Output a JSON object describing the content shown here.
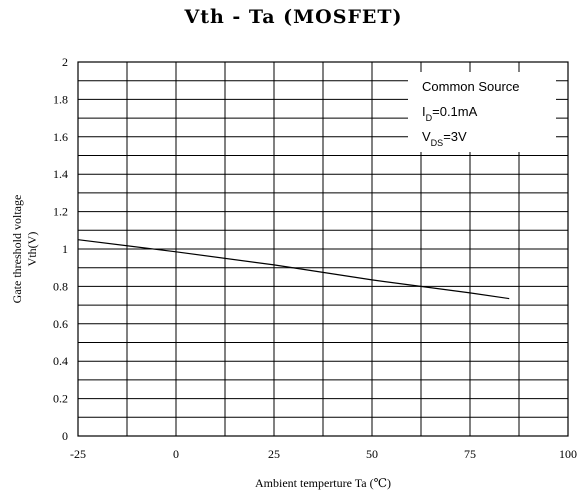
{
  "chart_data": {
    "type": "line",
    "title": "Vth - Ta (MOSFET)",
    "xlabel": "Ambient temperture  Ta (℃)",
    "ylabel_lines": [
      "Gate threshold voltage",
      "Vth(V)"
    ],
    "xlim": [
      -25,
      100
    ],
    "ylim": [
      0,
      2
    ],
    "x_ticks": [
      -25,
      0,
      25,
      50,
      75,
      100
    ],
    "x_tick_labels": [
      "-25",
      "0",
      "25",
      "50",
      "75",
      "100"
    ],
    "y_ticks": [
      0,
      0.2,
      0.4,
      0.6,
      0.8,
      1.0,
      1.2,
      1.4,
      1.6,
      1.8,
      2.0
    ],
    "y_tick_labels": [
      "0",
      "0.2",
      "0.4",
      "0.6",
      "0.8",
      "1",
      "1.2",
      "1.4",
      "1.6",
      "1.8",
      "2"
    ],
    "grid": true,
    "x_minor_step": 12.5,
    "y_minor_step": 0.1,
    "legend_position": "top-right",
    "legend_lines": [
      {
        "main": "Common Source",
        "sub": "",
        "rest": ""
      },
      {
        "main": "I",
        "sub": "D",
        "rest": "=0.1mA"
      },
      {
        "main": "V",
        "sub": "DS",
        "rest": "=3V"
      }
    ],
    "series": [
      {
        "x": [
          -25,
          0,
          25,
          50,
          75,
          85
        ],
        "y": [
          1.05,
          0.985,
          0.915,
          0.835,
          0.765,
          0.735
        ]
      }
    ]
  }
}
